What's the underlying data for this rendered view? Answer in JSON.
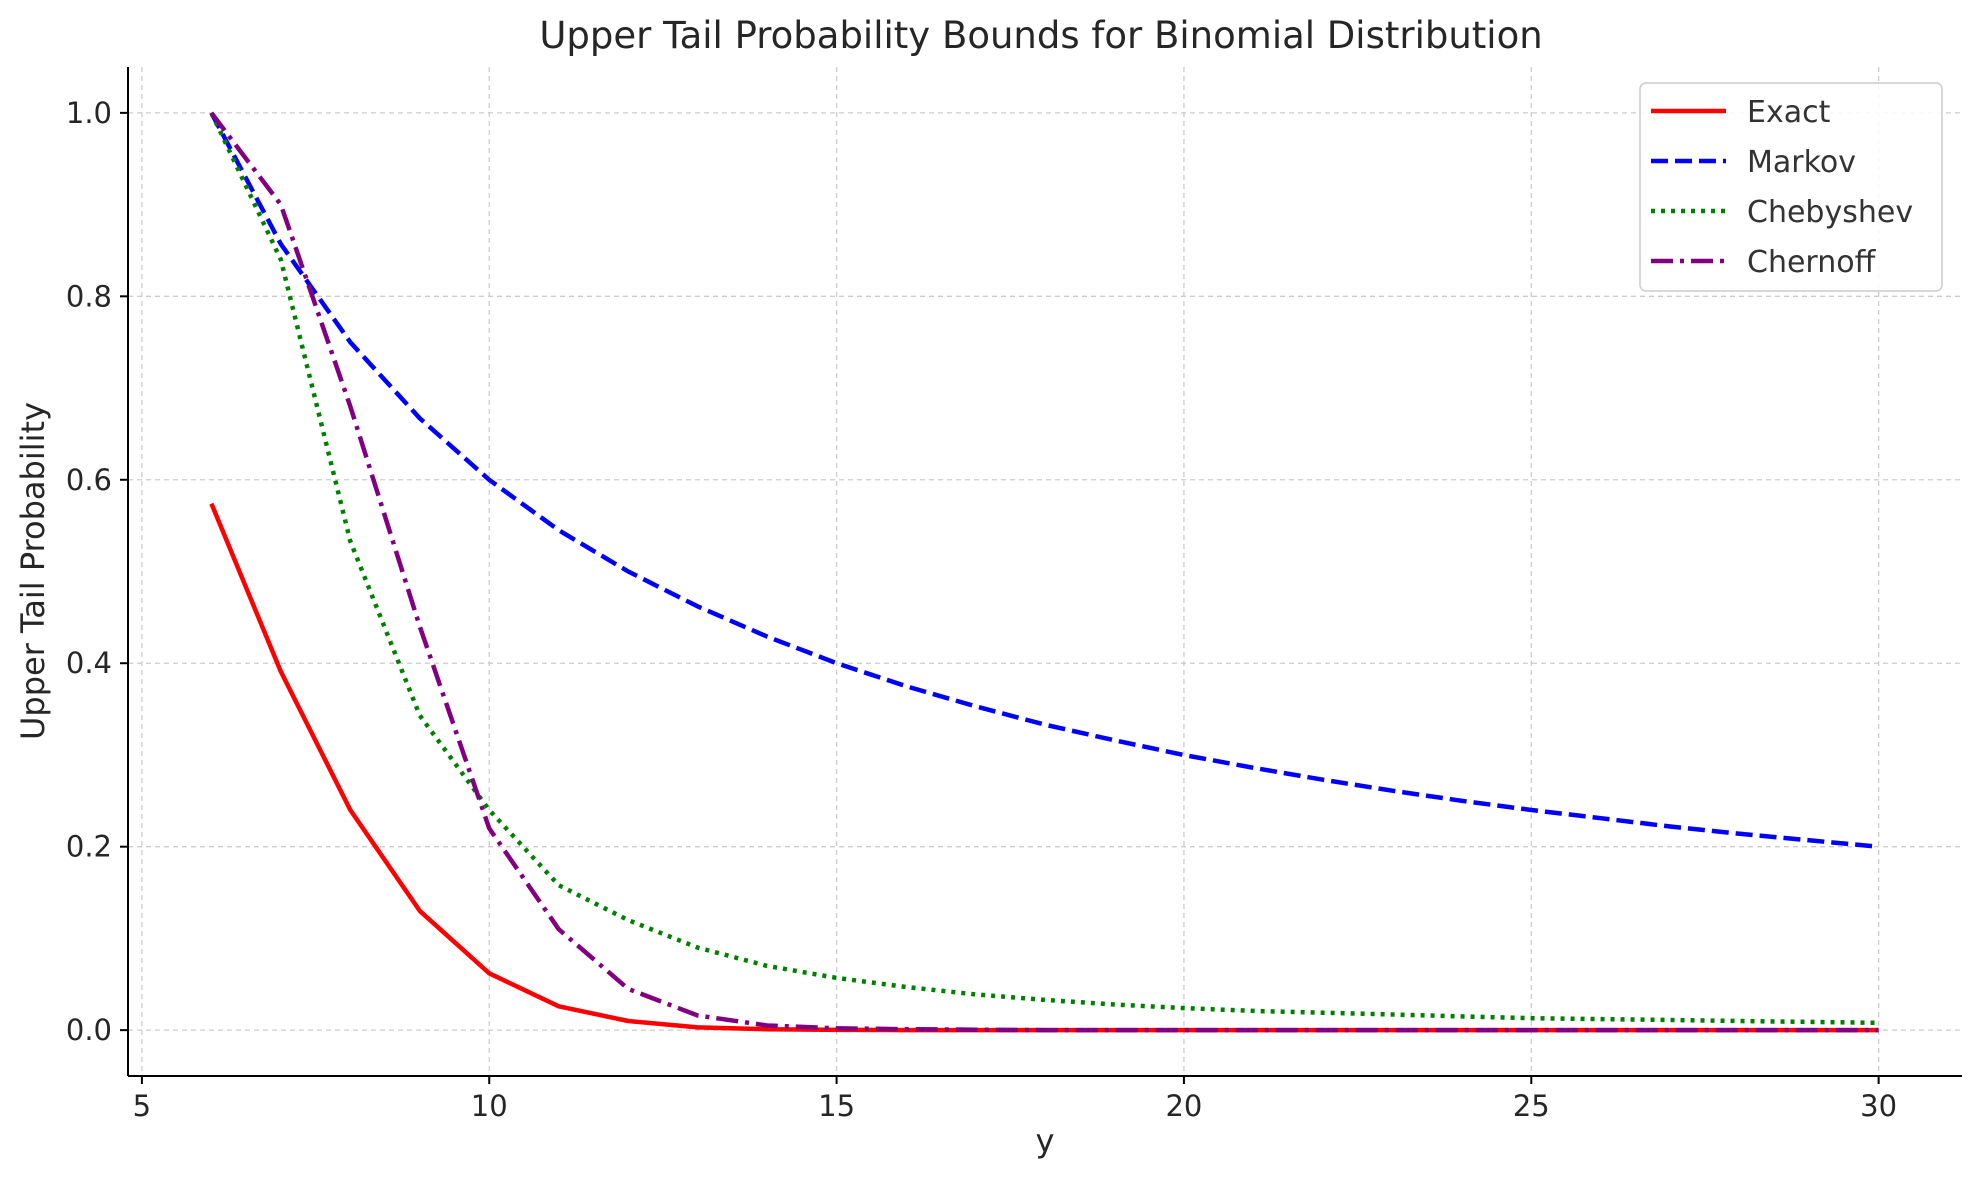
{
  "chart_data": {
    "type": "line",
    "title": "Upper Tail Probability Bounds for Binomial Distribution",
    "xlabel": "y",
    "ylabel": "Upper Tail Probability",
    "xlim": [
      4.8,
      31.2
    ],
    "ylim": [
      -0.05,
      1.05
    ],
    "xticks": [
      5,
      10,
      15,
      20,
      25,
      30
    ],
    "xtick_labels": [
      "5",
      "10",
      "15",
      "20",
      "25",
      "30"
    ],
    "yticks": [
      0.0,
      0.2,
      0.4,
      0.6,
      0.8,
      1.0
    ],
    "ytick_labels": [
      "0.0",
      "0.2",
      "0.4",
      "0.6",
      "0.8",
      "1.0"
    ],
    "grid": true,
    "legend_position": "top-right",
    "x": [
      6,
      7,
      8,
      9,
      10,
      11,
      12,
      13,
      14,
      15,
      16,
      17,
      18,
      19,
      20,
      21,
      22,
      23,
      24,
      25,
      26,
      27,
      28,
      29,
      30
    ],
    "series": [
      {
        "name": "Exact",
        "color": "#ff0000",
        "style": "solid",
        "values": [
          0.574,
          0.391,
          0.24,
          0.13,
          0.062,
          0.026,
          0.01,
          0.003,
          0.001,
          0.0003,
          0,
          0,
          0,
          0,
          0,
          0,
          0,
          0,
          0,
          0,
          0,
          0,
          0,
          0,
          0
        ]
      },
      {
        "name": "Markov",
        "color": "#0000ff",
        "style": "dashed",
        "values": [
          1.0,
          0.857,
          0.75,
          0.667,
          0.6,
          0.545,
          0.5,
          0.462,
          0.429,
          0.4,
          0.375,
          0.353,
          0.333,
          0.316,
          0.3,
          0.286,
          0.273,
          0.261,
          0.25,
          0.24,
          0.231,
          0.222,
          0.214,
          0.207,
          0.2
        ]
      },
      {
        "name": "Chebyshev",
        "color": "#008000",
        "style": "dotted",
        "values": [
          1.0,
          0.84,
          0.533,
          0.343,
          0.24,
          0.158,
          0.12,
          0.09,
          0.07,
          0.057,
          0.047,
          0.039,
          0.033,
          0.028,
          0.024,
          0.021,
          0.019,
          0.017,
          0.015,
          0.013,
          0.012,
          0.011,
          0.01,
          0.009,
          0.008
        ]
      },
      {
        "name": "Chernoff",
        "color": "#800080",
        "style": "dashdot",
        "values": [
          1.0,
          0.9,
          0.68,
          0.44,
          0.22,
          0.11,
          0.045,
          0.016,
          0.005,
          0.002,
          0.001,
          0.0005,
          0,
          0,
          0,
          0,
          0,
          0,
          0,
          0,
          0,
          0,
          0,
          0,
          0
        ]
      }
    ]
  }
}
